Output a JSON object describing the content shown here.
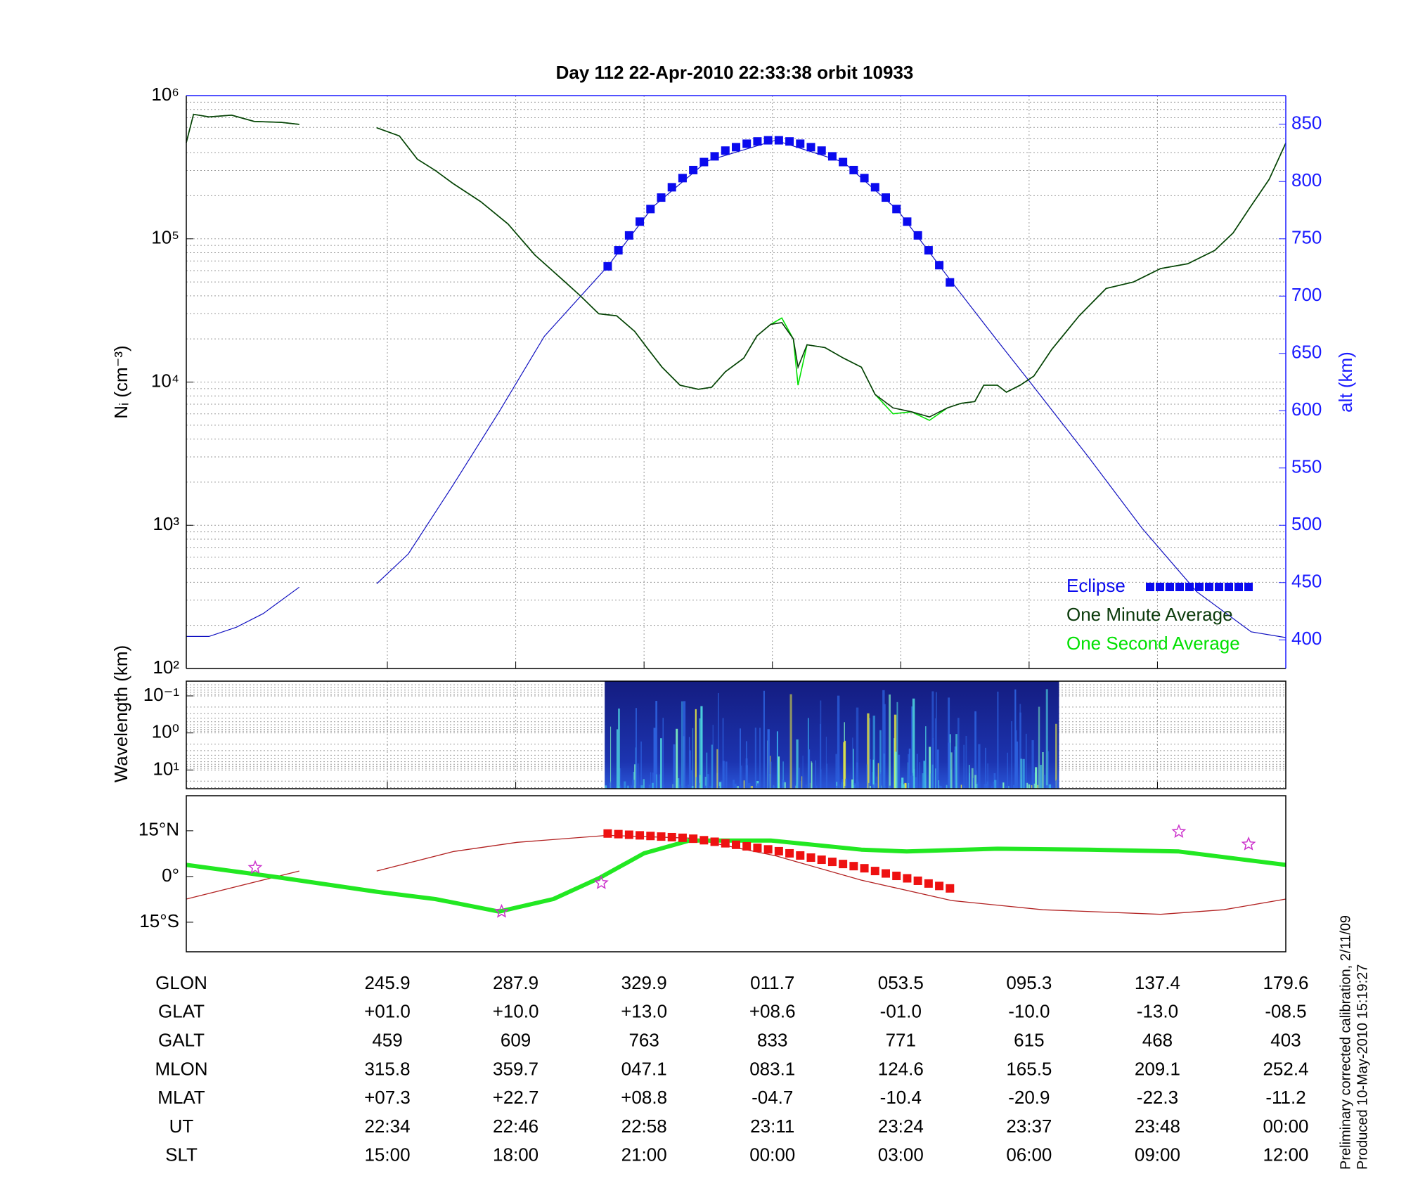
{
  "chart_data": [
    {
      "type": "line",
      "title": "Day 112  22-Apr-2010 22:33:38   orbit 10933",
      "ylabel": "Nᵢ (cm⁻³)",
      "y2label": "alt (km)",
      "xlim": [
        10.3,
        36.0
      ],
      "xticks": [
        15,
        18,
        21,
        24,
        27,
        30,
        33
      ],
      "ylog": true,
      "ylim": [
        100,
        1000000
      ],
      "yticks": [
        {
          "value": 100,
          "label": "10²"
        },
        {
          "value": 1000,
          "label": "10³"
        },
        {
          "value": 10000,
          "label": "10⁴"
        },
        {
          "value": 100000,
          "label": "10⁵"
        },
        {
          "value": 1000000,
          "label": "10⁶"
        }
      ],
      "yminorticks": [
        200,
        300,
        400,
        500,
        600,
        700,
        800,
        900,
        2000,
        3000,
        4000,
        5000,
        6000,
        7000,
        8000,
        9000,
        20000,
        30000,
        40000,
        50000,
        60000,
        70000,
        80000,
        90000,
        200000,
        300000,
        400000,
        500000,
        600000,
        700000,
        800000,
        900000
      ],
      "y2lim": [
        375,
        875
      ],
      "y2ticks": [
        400,
        450,
        500,
        550,
        600,
        650,
        700,
        750,
        800,
        850
      ],
      "y2color": "#1a1aff",
      "grid": true,
      "legend": "lower right",
      "x": [
        10.3,
        10.47,
        10.83,
        11.36,
        11.89,
        12.52,
        12.94,
        13.85,
        14.75,
        15.28,
        15.7,
        16.12,
        16.53,
        17.18,
        17.82,
        18.45,
        19.09,
        19.51,
        19.94,
        20.36,
        20.78,
        21.1,
        21.42,
        21.84,
        22.27,
        22.58,
        22.9,
        23.33,
        23.64,
        23.96,
        24.22,
        24.49,
        24.6,
        24.81,
        25.23,
        25.66,
        26.08,
        26.4,
        26.82,
        27.25,
        27.67,
        28.09,
        28.41,
        28.73,
        28.94,
        29.26,
        29.47,
        29.79,
        30.11,
        30.53,
        31.17,
        31.8,
        32.44,
        33.07,
        33.71,
        34.34,
        34.77,
        35.19,
        35.61,
        36.0
      ],
      "series": [
        {
          "color": "#1010c0",
          "axis": "y2",
          "x": [
            10.3,
            10.83,
            11.47,
            12.1,
            12.94,
            13.85,
            14.75,
            15.49,
            16.55,
            17.61,
            18.67,
            20.15,
            21.21,
            22.48,
            24.07,
            25.66,
            26.93,
            28.2,
            29.26,
            30.0,
            31.38,
            32.65,
            33.92,
            35.19,
            36.0
          ],
          "values": [
            403,
            403,
            411,
            423,
            446,
            null,
            449,
            475,
            536,
            599,
            665,
            726,
            778,
            818,
            836,
            817,
            775,
            712,
            661,
            626,
            560,
            497,
            442,
            407,
            402
          ]
        },
        {
          "name": "One Second Average",
          "color": "#00e000",
          "values": [
            470000,
            740000,
            710000,
            730000,
            660000,
            650000,
            630000,
            null,
            596000,
            523000,
            360000,
            300000,
            244000,
            182000,
            127000,
            77000,
            52000,
            40000,
            30000,
            29000,
            22600,
            16900,
            12700,
            9500,
            8900,
            9200,
            11800,
            14700,
            21000,
            25300,
            28000,
            20000,
            9500,
            18200,
            17400,
            14700,
            12700,
            8200,
            6000,
            6200,
            5400,
            6600,
            7100,
            7300,
            9500,
            9500,
            8500,
            9500,
            11000,
            16900,
            29000,
            45000,
            50000,
            62000,
            67000,
            83000,
            110000,
            170000,
            260000,
            466000
          ]
        },
        {
          "name": "One Minute Average",
          "color": "#0a3a0a",
          "values": [
            470000,
            740000,
            710000,
            730000,
            660000,
            650000,
            630000,
            null,
            596000,
            523000,
            360000,
            300000,
            244000,
            182000,
            127000,
            77000,
            52000,
            40000,
            30000,
            29000,
            22600,
            16900,
            12700,
            9500,
            8900,
            9200,
            11800,
            14700,
            21000,
            25300,
            26000,
            20000,
            12700,
            18200,
            17400,
            14700,
            12700,
            8200,
            6600,
            6200,
            5700,
            6600,
            7100,
            7300,
            9500,
            9500,
            8500,
            9500,
            11000,
            16900,
            29000,
            45000,
            50000,
            62000,
            67000,
            83000,
            110000,
            170000,
            260000,
            466000
          ]
        },
        {
          "name": "Eclipse",
          "color": "#0a0aee",
          "axis": "y2",
          "marker": "square",
          "x": [
            20.15,
            20.4,
            20.65,
            20.9,
            21.15,
            21.4,
            21.65,
            21.9,
            22.15,
            22.4,
            22.65,
            22.9,
            23.15,
            23.4,
            23.65,
            23.9,
            24.15,
            24.4,
            24.65,
            24.9,
            25.15,
            25.4,
            25.65,
            25.9,
            26.15,
            26.4,
            26.65,
            26.9,
            27.15,
            27.4,
            27.65,
            27.9,
            28.15
          ],
          "values": [
            726,
            740,
            753,
            765,
            776,
            786,
            795,
            803,
            810,
            817,
            822,
            827,
            830,
            833,
            835,
            836,
            836,
            835,
            833,
            830,
            827,
            822,
            817,
            810,
            803,
            795,
            786,
            776,
            765,
            753,
            740,
            727,
            712
          ]
        }
      ]
    },
    {
      "type": "spectrogram",
      "ylabel": "Wavelength (km)",
      "xlim": [
        10.3,
        36.0
      ],
      "xticks": [
        15,
        18,
        21,
        24,
        27,
        30,
        33
      ],
      "ylog": true,
      "yreverse": true,
      "ylim": [
        0.04,
        32
      ],
      "yticks": [
        {
          "value": 0.1,
          "label": "10⁻¹"
        },
        {
          "value": 1,
          "label": "10⁰"
        },
        {
          "value": 10,
          "label": "10¹"
        }
      ],
      "yminorticks": [
        0.05,
        0.06,
        0.07,
        0.08,
        0.09,
        0.2,
        0.3,
        0.4,
        0.5,
        0.6,
        0.7,
        0.8,
        0.9,
        2,
        3,
        4,
        5,
        6,
        7,
        8,
        9,
        20,
        30
      ],
      "grid": true,
      "x": [
        20.08,
        30.7
      ]
    },
    {
      "type": "map",
      "xlim": [
        10.3,
        36.0
      ],
      "ylim": [
        -24.7,
        26.5
      ],
      "yticks": [
        {
          "value": 15,
          "label": "15°N"
        },
        {
          "value": 0,
          "label": "0°"
        },
        {
          "value": -15,
          "label": "15°S"
        }
      ],
      "series": [
        {
          "color": "#b22222",
          "style": "thin",
          "x": [
            10.3,
            12.94,
            13.85,
            14.75,
            16.55,
            18.03,
            20.15,
            22.06,
            24.07,
            26.08,
            28.2,
            30.32,
            33.07,
            34.55,
            36.0
          ],
          "values": [
            -7.4,
            1.8,
            null,
            1.8,
            8.2,
            11.2,
            13.5,
            12.6,
            6.8,
            -1.2,
            -7.9,
            -10.9,
            -12.4,
            -10.9,
            -7.4
          ]
        },
        {
          "color": "#22e822",
          "style": "thick",
          "x": [
            10.3,
            12.31,
            14.75,
            16.12,
            17.61,
            18.88,
            19.94,
            21.0,
            22.06,
            23.96,
            26.08,
            27.14,
            29.26,
            31.38,
            33.5,
            36.0
          ],
          "values": [
            3.8,
            0,
            -5.0,
            -7.4,
            -11.5,
            -7.4,
            -0.6,
            7.6,
            11.8,
            11.8,
            8.8,
            8.2,
            9.1,
            8.8,
            8.2,
            3.8
          ]
        },
        {
          "color": "#ee1111",
          "marker": "square",
          "x": [
            20.15,
            20.4,
            20.65,
            20.9,
            21.15,
            21.4,
            21.65,
            21.9,
            22.15,
            22.4,
            22.65,
            22.9,
            23.15,
            23.4,
            23.65,
            23.9,
            24.15,
            24.4,
            24.65,
            24.9,
            25.15,
            25.4,
            25.65,
            25.9,
            26.15,
            26.4,
            26.65,
            26.9,
            27.15,
            27.4,
            27.65,
            27.9,
            28.15
          ],
          "values": [
            14.1,
            13.9,
            13.7,
            13.5,
            13.3,
            13.1,
            12.9,
            12.7,
            12.4,
            11.9,
            11.4,
            10.9,
            10.4,
            9.9,
            9.4,
            8.9,
            8.3,
            7.6,
            6.9,
            6.2,
            5.5,
            4.8,
            4.1,
            3.4,
            2.7,
            1.8,
            1.0,
            0.2,
            -0.6,
            -1.4,
            -2.3,
            -3.1,
            -3.9
          ]
        }
      ],
      "markers": {
        "color": "#cc33cc",
        "x": [
          11.91,
          17.67,
          20.0,
          33.5,
          35.13
        ],
        "values": [
          2.9,
          -11.5,
          -2.1,
          14.7,
          10.6
        ]
      }
    }
  ],
  "table": {
    "rows": [
      [
        "GLON",
        "245.9",
        "287.9",
        "329.9",
        "011.7",
        "053.5",
        "095.3",
        "137.4",
        "179.6"
      ],
      [
        "GLAT",
        "+01.0",
        "+10.0",
        "+13.0",
        "+08.6",
        "-01.0",
        "-10.0",
        "-13.0",
        "-08.5"
      ],
      [
        "GALT",
        "459",
        "609",
        "763",
        "833",
        "771",
        "615",
        "468",
        "403"
      ],
      [
        "MLON",
        "315.8",
        "359.7",
        "047.1",
        "083.1",
        "124.6",
        "165.5",
        "209.1",
        "252.4"
      ],
      [
        "MLAT",
        "+07.3",
        "+22.7",
        "+08.8",
        "-04.7",
        "-10.4",
        "-20.9",
        "-22.3",
        "-11.2"
      ],
      [
        "UT",
        "22:34",
        "22:46",
        "22:58",
        "23:11",
        "23:24",
        "23:37",
        "23:48",
        "00:00"
      ],
      [
        "SLT",
        "15:00",
        "18:00",
        "21:00",
        "00:00",
        "03:00",
        "06:00",
        "09:00",
        "12:00"
      ]
    ]
  },
  "notes": [
    "Preliminary corrected calibration, 2/11/09",
    "Produced 10-May-2010 15:19:27"
  ]
}
